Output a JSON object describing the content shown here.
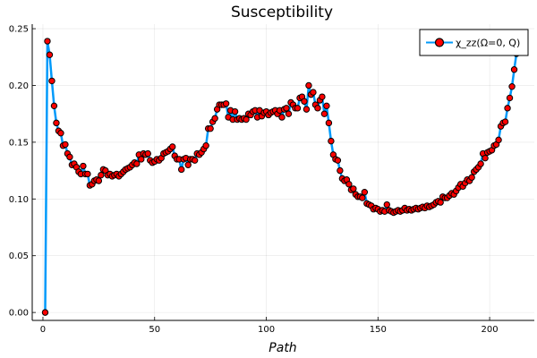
{
  "chart_data": {
    "type": "line",
    "title": "Susceptibility",
    "xlabel": "Path",
    "ylabel": "",
    "xlim": [
      -4.8,
      220
    ],
    "ylim": [
      -0.007,
      0.254
    ],
    "xticks": [
      0,
      50,
      100,
      150,
      200
    ],
    "yticks": [
      0.0,
      0.05,
      0.1,
      0.15,
      0.2,
      0.25
    ],
    "xtick_labels": [
      "0",
      "50",
      "100",
      "150",
      "200"
    ],
    "ytick_labels": [
      "0.00",
      "0.05",
      "0.10",
      "0.15",
      "0.20",
      "0.25"
    ],
    "grid": true,
    "legend_position": "top-right",
    "series": [
      {
        "name": "χ_zz(Ω=0, Q)",
        "line_color": "#009AFA",
        "marker_color": "#FF0000",
        "marker_edge_color": "#000000",
        "x_start": 1,
        "values": [
          0.0,
          0.239,
          0.227,
          0.204,
          0.182,
          0.167,
          0.16,
          0.158,
          0.147,
          0.148,
          0.14,
          0.137,
          0.13,
          0.131,
          0.128,
          0.124,
          0.122,
          0.129,
          0.122,
          0.122,
          0.112,
          0.113,
          0.116,
          0.117,
          0.116,
          0.121,
          0.126,
          0.125,
          0.121,
          0.122,
          0.12,
          0.121,
          0.122,
          0.12,
          0.122,
          0.124,
          0.126,
          0.127,
          0.128,
          0.13,
          0.132,
          0.131,
          0.139,
          0.135,
          0.14,
          0.139,
          0.14,
          0.134,
          0.132,
          0.133,
          0.135,
          0.134,
          0.136,
          0.14,
          0.141,
          0.142,
          0.144,
          0.146,
          0.138,
          0.135,
          0.135,
          0.126,
          0.135,
          0.136,
          0.13,
          0.135,
          0.135,
          0.134,
          0.14,
          0.139,
          0.141,
          0.144,
          0.147,
          0.162,
          0.162,
          0.168,
          0.171,
          0.179,
          0.183,
          0.183,
          0.183,
          0.184,
          0.172,
          0.178,
          0.17,
          0.177,
          0.17,
          0.171,
          0.17,
          0.171,
          0.17,
          0.175,
          0.174,
          0.177,
          0.178,
          0.172,
          0.178,
          0.173,
          0.176,
          0.177,
          0.174,
          0.176,
          0.177,
          0.178,
          0.175,
          0.178,
          0.172,
          0.179,
          0.18,
          0.175,
          0.185,
          0.183,
          0.18,
          0.18,
          0.189,
          0.19,
          0.186,
          0.179,
          0.2,
          0.192,
          0.194,
          0.183,
          0.18,
          0.187,
          0.19,
          0.175,
          0.182,
          0.167,
          0.151,
          0.139,
          0.135,
          0.134,
          0.125,
          0.118,
          0.116,
          0.117,
          0.113,
          0.108,
          0.109,
          0.104,
          0.102,
          0.102,
          0.101,
          0.106,
          0.096,
          0.095,
          0.094,
          0.091,
          0.092,
          0.091,
          0.089,
          0.09,
          0.089,
          0.095,
          0.09,
          0.089,
          0.088,
          0.089,
          0.09,
          0.089,
          0.09,
          0.092,
          0.09,
          0.091,
          0.09,
          0.091,
          0.092,
          0.091,
          0.092,
          0.093,
          0.092,
          0.094,
          0.093,
          0.094,
          0.095,
          0.097,
          0.098,
          0.097,
          0.102,
          0.101,
          0.101,
          0.103,
          0.105,
          0.104,
          0.107,
          0.11,
          0.113,
          0.111,
          0.114,
          0.117,
          0.116,
          0.119,
          0.124,
          0.126,
          0.128,
          0.131,
          0.14,
          0.136,
          0.141,
          0.142,
          0.143,
          0.147,
          0.148,
          0.152,
          0.164,
          0.167,
          0.168,
          0.18,
          0.189,
          0.199,
          0.214,
          0.228
        ]
      }
    ]
  }
}
